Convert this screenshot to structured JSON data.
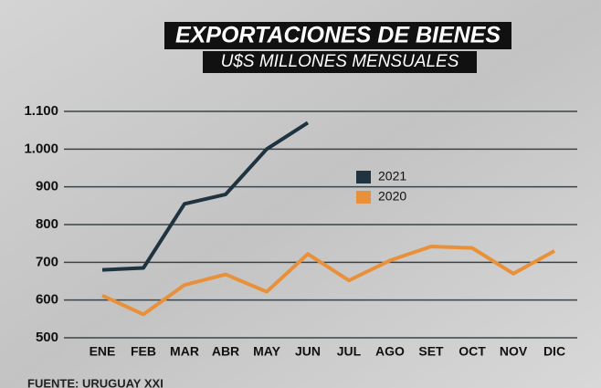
{
  "chart_data": {
    "type": "line",
    "title": "EXPORTACIONES DE BIENES",
    "subtitle": "U$S MILLONES  MENSUALES",
    "source": "FUENTE: URUGUAY XXI",
    "categories": [
      "ENE",
      "FEB",
      "MAR",
      "ABR",
      "MAY",
      "JUN",
      "JUL",
      "AGO",
      "SET",
      "OCT",
      "NOV",
      "DIC"
    ],
    "series": [
      {
        "name": "2021",
        "color": "#1f3440",
        "values": [
          680,
          685,
          855,
          880,
          1000,
          1070,
          null,
          null,
          null,
          null,
          null,
          null
        ]
      },
      {
        "name": "2020",
        "color": "#e8913a",
        "values": [
          612,
          562,
          640,
          668,
          622,
          722,
          652,
          705,
          742,
          738,
          670,
          730
        ]
      }
    ],
    "ylim": [
      500,
      1100
    ],
    "yticks": [
      500,
      600,
      700,
      800,
      900,
      {
        "value": 1000,
        "label": "1.000"
      },
      {
        "value": 1100,
        "label": "1.100"
      }
    ],
    "grid": true
  }
}
